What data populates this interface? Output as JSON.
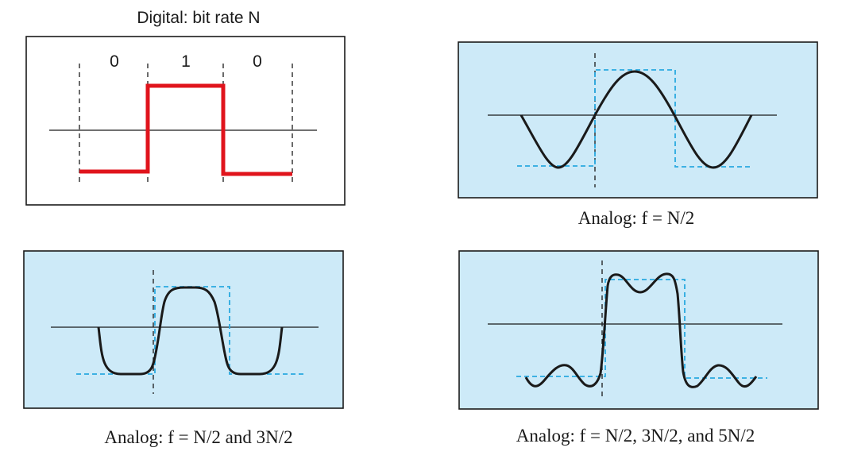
{
  "digital": {
    "caption": "Digital: bit rate N",
    "bits": [
      "0",
      "1",
      "0"
    ],
    "signal_color": "#e0141c"
  },
  "analog_panels": [
    {
      "caption": "Analog: f = N/2",
      "harmonics": [
        "N/2"
      ]
    },
    {
      "caption": "Analog: f = N/2 and 3N/2",
      "harmonics": [
        "N/2",
        "3N/2"
      ]
    },
    {
      "caption": "Analog: f = N/2, 3N/2, and 5N/2",
      "harmonics": [
        "N/2",
        "3N/2",
        "5N/2"
      ]
    }
  ],
  "colors": {
    "analog_background": "#cdeaf8",
    "reference_square_wave": "#29a9e0",
    "analog_curve": "#1a1a1a",
    "axis": "#1a1a1a"
  }
}
